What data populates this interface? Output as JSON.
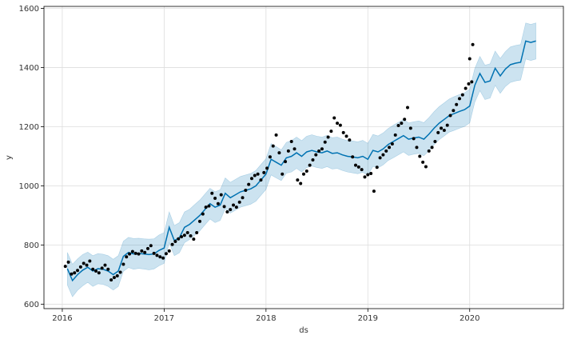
{
  "chart_data": {
    "type": "line",
    "xlabel": "ds",
    "ylabel": "y",
    "xlim": [
      2015.82,
      2020.92
    ],
    "ylim": [
      585,
      1607
    ],
    "x_ticks": [
      2016,
      2017,
      2018,
      2019,
      2020
    ],
    "x_tick_labels": [
      "2016",
      "2017",
      "2018",
      "2019",
      "2020"
    ],
    "y_ticks": [
      600,
      800,
      1000,
      1200,
      1400,
      1600
    ],
    "y_tick_labels": [
      "600",
      "800",
      "1000",
      "1200",
      "1400",
      "1600"
    ],
    "grid": true,
    "colors": {
      "forecast": "#0072B2",
      "band": "#0072B2",
      "points": "#000000",
      "grid": "#dddddd"
    },
    "series": [
      {
        "kind": "forecast",
        "x": [
          2016.05,
          2016.1,
          2016.15,
          2016.2,
          2016.25,
          2016.3,
          2016.35,
          2016.4,
          2016.45,
          2016.5,
          2016.55,
          2016.6,
          2016.65,
          2016.7,
          2016.75,
          2016.8,
          2016.85,
          2016.9,
          2016.95,
          2017.0,
          2017.05,
          2017.1,
          2017.15,
          2017.2,
          2017.25,
          2017.3,
          2017.35,
          2017.4,
          2017.45,
          2017.5,
          2017.55,
          2017.6,
          2017.65,
          2017.7,
          2017.75,
          2017.8,
          2017.85,
          2017.9,
          2017.95,
          2018.0,
          2018.05,
          2018.1,
          2018.15,
          2018.2,
          2018.25,
          2018.3,
          2018.35,
          2018.4,
          2018.45,
          2018.5,
          2018.55,
          2018.6,
          2018.65,
          2018.7,
          2018.75,
          2018.8,
          2018.85,
          2018.9,
          2018.95,
          2019.0,
          2019.05,
          2019.1,
          2019.15,
          2019.2,
          2019.25,
          2019.3,
          2019.35,
          2019.4,
          2019.45,
          2019.5,
          2019.55,
          2019.6,
          2019.65,
          2019.7,
          2019.75,
          2019.8,
          2019.85,
          2019.9,
          2019.95,
          2020.0,
          2020.05,
          2020.1,
          2020.15,
          2020.2,
          2020.25,
          2020.3,
          2020.35,
          2020.4,
          2020.45,
          2020.5,
          2020.55,
          2020.6,
          2020.65
        ],
        "yhat": [
          720,
          680,
          700,
          715,
          725,
          712,
          720,
          718,
          712,
          700,
          712,
          762,
          775,
          770,
          772,
          770,
          768,
          770,
          782,
          790,
          860,
          815,
          825,
          860,
          870,
          885,
          900,
          920,
          940,
          928,
          935,
          975,
          960,
          970,
          980,
          985,
          990,
          1000,
          1020,
          1040,
          1090,
          1080,
          1070,
          1095,
          1100,
          1112,
          1100,
          1115,
          1120,
          1115,
          1112,
          1118,
          1110,
          1112,
          1105,
          1100,
          1098,
          1095,
          1100,
          1090,
          1120,
          1115,
          1125,
          1140,
          1150,
          1160,
          1170,
          1158,
          1162,
          1165,
          1158,
          1175,
          1195,
          1212,
          1225,
          1238,
          1245,
          1252,
          1258,
          1270,
          1340,
          1380,
          1350,
          1355,
          1398,
          1372,
          1395,
          1410,
          1415,
          1418,
          1490,
          1485,
          1490
        ],
        "upper": [
          775,
          735,
          753,
          768,
          776,
          764,
          771,
          769,
          764,
          752,
          764,
          813,
          826,
          822,
          823,
          821,
          820,
          821,
          834,
          842,
          912,
          866,
          876,
          912,
          921,
          937,
          952,
          972,
          992,
          980,
          987,
          1027,
          1012,
          1022,
          1032,
          1037,
          1042,
          1052,
          1072,
          1092,
          1143,
          1133,
          1122,
          1147,
          1153,
          1165,
          1153,
          1168,
          1173,
          1168,
          1165,
          1171,
          1163,
          1165,
          1158,
          1153,
          1152,
          1149,
          1154,
          1144,
          1174,
          1169,
          1179,
          1194,
          1205,
          1215,
          1225,
          1213,
          1217,
          1220,
          1214,
          1231,
          1251,
          1268,
          1281,
          1294,
          1302,
          1309,
          1315,
          1327,
          1397,
          1438,
          1408,
          1413,
          1456,
          1431,
          1454,
          1470,
          1475,
          1478,
          1551,
          1546,
          1551
        ],
        "lower": [
          665,
          625,
          647,
          662,
          674,
          660,
          669,
          667,
          660,
          648,
          660,
          711,
          724,
          718,
          721,
          719,
          716,
          719,
          730,
          738,
          808,
          764,
          774,
          808,
          819,
          833,
          848,
          868,
          888,
          876,
          883,
          923,
          908,
          918,
          928,
          933,
          938,
          948,
          968,
          988,
          1037,
          1027,
          1018,
          1043,
          1047,
          1059,
          1047,
          1062,
          1067,
          1062,
          1059,
          1065,
          1057,
          1059,
          1052,
          1047,
          1044,
          1041,
          1046,
          1036,
          1066,
          1061,
          1071,
          1086,
          1095,
          1105,
          1115,
          1103,
          1107,
          1110,
          1102,
          1119,
          1139,
          1156,
          1169,
          1182,
          1188,
          1195,
          1201,
          1213,
          1283,
          1322,
          1292,
          1297,
          1340,
          1313,
          1336,
          1350,
          1355,
          1358,
          1429,
          1424,
          1429
        ]
      },
      {
        "kind": "observed",
        "x": [
          2016.03,
          2016.06,
          2016.09,
          2016.12,
          2016.15,
          2016.18,
          2016.21,
          2016.24,
          2016.27,
          2016.3,
          2016.33,
          2016.36,
          2016.39,
          2016.42,
          2016.45,
          2016.48,
          2016.51,
          2016.54,
          2016.57,
          2016.6,
          2016.63,
          2016.66,
          2016.69,
          2016.72,
          2016.75,
          2016.78,
          2016.81,
          2016.84,
          2016.87,
          2016.9,
          2016.93,
          2016.96,
          2016.99,
          2017.02,
          2017.05,
          2017.08,
          2017.11,
          2017.14,
          2017.17,
          2017.2,
          2017.23,
          2017.26,
          2017.29,
          2017.32,
          2017.35,
          2017.38,
          2017.41,
          2017.44,
          2017.47,
          2017.5,
          2017.53,
          2017.56,
          2017.59,
          2017.62,
          2017.65,
          2017.68,
          2017.71,
          2017.74,
          2017.77,
          2017.8,
          2017.83,
          2017.86,
          2017.89,
          2017.92,
          2017.95,
          2017.98,
          2018.01,
          2018.04,
          2018.07,
          2018.1,
          2018.13,
          2018.16,
          2018.19,
          2018.22,
          2018.25,
          2018.28,
          2018.31,
          2018.34,
          2018.37,
          2018.4,
          2018.43,
          2018.46,
          2018.49,
          2018.52,
          2018.55,
          2018.58,
          2018.61,
          2018.64,
          2018.67,
          2018.7,
          2018.73,
          2018.76,
          2018.79,
          2018.82,
          2018.85,
          2018.88,
          2018.91,
          2018.94,
          2018.97,
          2019.0,
          2019.03,
          2019.06,
          2019.09,
          2019.12,
          2019.15,
          2019.18,
          2019.21,
          2019.24,
          2019.27,
          2019.3,
          2019.33,
          2019.36,
          2019.39,
          2019.42,
          2019.45,
          2019.48,
          2019.51,
          2019.54,
          2019.57,
          2019.6,
          2019.63,
          2019.66,
          2019.69,
          2019.72,
          2019.75,
          2019.78,
          2019.81,
          2019.84,
          2019.87,
          2019.9,
          2019.93,
          2019.96,
          2019.99,
          2020.02
        ],
        "y": [
          728,
          742,
          702,
          706,
          714,
          726,
          738,
          732,
          746,
          718,
          712,
          706,
          722,
          732,
          718,
          682,
          690,
          696,
          708,
          735,
          760,
          770,
          778,
          772,
          770,
          780,
          775,
          788,
          798,
          772,
          765,
          760,
          756,
          771,
          780,
          802,
          812,
          821,
          828,
          833,
          842,
          831,
          820,
          842,
          880,
          905,
          928,
          932,
          975,
          958,
          940,
          970,
          930,
          912,
          920,
          935,
          928,
          945,
          960,
          985,
          1005,
          1025,
          1035,
          1040,
          1020,
          1045,
          1060,
          1098,
          1135,
          1172,
          1112,
          1040,
          1082,
          1118,
          1150,
          1125,
          1020,
          1008,
          1040,
          1050,
          1070,
          1088,
          1105,
          1118,
          1125,
          1148,
          1165,
          1185,
          1230,
          1212,
          1205,
          1180,
          1168,
          1155,
          1098,
          1070,
          1064,
          1055,
          1030,
          1038,
          1042,
          982,
          1063,
          1095,
          1105,
          1118,
          1130,
          1142,
          1172,
          1204,
          1212,
          1225,
          1265,
          1195,
          1160,
          1130,
          1100,
          1080,
          1065,
          1118,
          1130,
          1150,
          1180,
          1195,
          1188,
          1205,
          1238,
          1255,
          1275,
          1295,
          1308,
          1330,
          1345,
          1352
        ]
      },
      {
        "kind": "observed",
        "x": [
          2020.0,
          2020.03
        ],
        "y": [
          1430,
          1478
        ]
      }
    ]
  }
}
